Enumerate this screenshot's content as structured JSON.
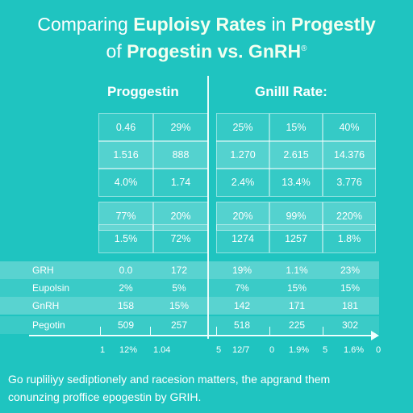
{
  "title": {
    "line1_plain": "Comparing ",
    "line1_bold": "Euploisy Rates",
    "line1_mid": " in ",
    "line1_end": "Progestly",
    "line2_plain": "of ",
    "line2_bold": "Progestin vs. GnRH",
    "line2_mark": "®"
  },
  "headers": {
    "left": "Proggestin",
    "right": "Gnilll Rate:"
  },
  "top_grid": [
    [
      "0.46",
      "29%",
      "25%",
      "15%",
      "40%"
    ],
    [
      "1.516",
      "888",
      "1.270",
      "2.615",
      "14.376"
    ],
    [
      "4.0%",
      "1.74",
      "2.4%",
      "13.4%",
      "3.776"
    ],
    [
      "77%",
      "20%",
      "20%",
      "99%",
      "220%"
    ],
    [
      "1.5%",
      "72%",
      "1274",
      "1257",
      "1.8%"
    ]
  ],
  "bottom_rows": [
    {
      "label": "GRH",
      "values": [
        "0.0",
        "172",
        "19%",
        "1.1%",
        "23%"
      ]
    },
    {
      "label": "Eupolsin",
      "values": [
        "2%",
        "5%",
        "7%",
        "15%",
        "15%"
      ]
    },
    {
      "label": "GnRH",
      "values": [
        "158",
        "15%",
        "142",
        "171",
        "181"
      ]
    },
    {
      "label": "Pegotin",
      "values": [
        "509",
        "257",
        "518",
        "225",
        "302"
      ]
    }
  ],
  "axis_labels": [
    "1",
    "12%",
    "1.04",
    "5",
    "12/7",
    "0",
    "1.9%",
    "5",
    "1.6%",
    "0"
  ],
  "footer": {
    "line1": "Go rupliliyy sediptionely and racesion matters, the apgrand them",
    "line2": "conunzing proffice epogestin by GRIH."
  },
  "colors": {
    "background": "#1fc4c0",
    "text": "#ffffff"
  }
}
